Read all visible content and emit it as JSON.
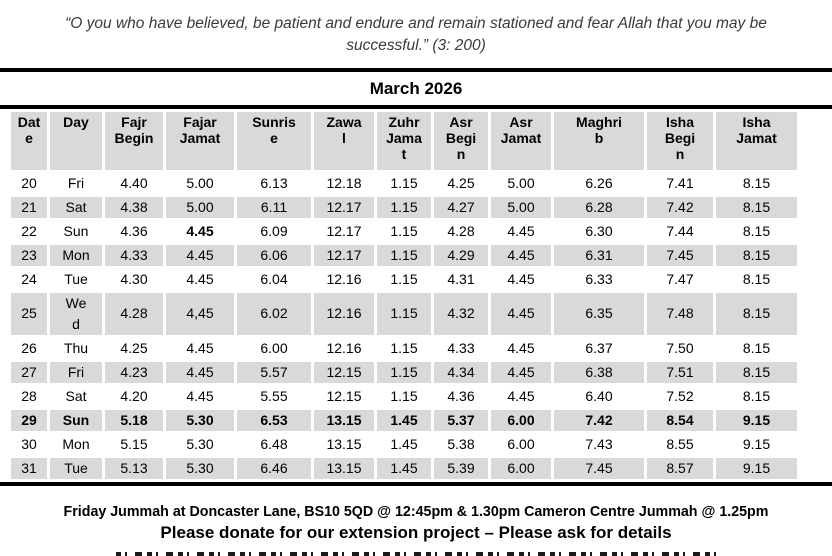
{
  "quote": {
    "text": "“O you who have believed, be patient and endure and remain stationed and fear Allah that you may be\nsuccessful.” (3: 200)"
  },
  "table": {
    "title": "March 2026",
    "columns": [
      "Dat\ne",
      "Day",
      "Fajr\nBegin",
      "Fajar\nJamat",
      "Sunris\ne",
      "Zawa\nl",
      "Zuhr\nJama\nt",
      "Asr\nBegi\nn",
      "Asr\nJamat",
      "Maghri\nb",
      "Isha\nBegi\nn",
      "Isha\nJamat"
    ],
    "rows": [
      {
        "date": "20",
        "day": "Fri",
        "times": [
          "4.40",
          "5.00",
          "6.13",
          "12.18",
          "1.15",
          "4.25",
          "5.00",
          "6.26",
          "7.41",
          "8.15"
        ],
        "shaded": false,
        "bold_row": false,
        "bold_times": [],
        "small_times": []
      },
      {
        "date": "21",
        "day": "Sat",
        "times": [
          "4.38",
          "5.00",
          "6.11",
          "12.17",
          "1.15",
          "4.27",
          "5.00",
          "6.28",
          "7.42",
          "8.15"
        ],
        "shaded": true,
        "bold_row": false,
        "bold_times": [],
        "small_times": [
          6
        ]
      },
      {
        "date": "22",
        "day": "Sun",
        "times": [
          "4.36",
          "4.45",
          "6.09",
          "12.17",
          "1.15",
          "4.28",
          "4.45",
          "6.30",
          "7.44",
          "8.15"
        ],
        "shaded": false,
        "bold_row": false,
        "bold_times": [
          1
        ],
        "small_times": []
      },
      {
        "date": "23",
        "day": "Mon",
        "times": [
          "4.33",
          "4.45",
          "6.06",
          "12.17",
          "1.15",
          "4.29",
          "4.45",
          "6.31",
          "7.45",
          "8.15"
        ],
        "shaded": true,
        "bold_row": false,
        "bold_times": [],
        "small_times": [
          6
        ]
      },
      {
        "date": "24",
        "day": "Tue",
        "times": [
          "4.30",
          "4.45",
          "6.04",
          "12.16",
          "1.15",
          "4.31",
          "4.45",
          "6.33",
          "7.47",
          "8.15"
        ],
        "shaded": false,
        "bold_row": false,
        "bold_times": [],
        "small_times": [
          6
        ]
      },
      {
        "date": "25",
        "day": "We\nd",
        "times": [
          "4.28",
          "4,45",
          "6.02",
          "12.16",
          "1.15",
          "4.32",
          "4.45",
          "6.35",
          "7.48",
          "8.15"
        ],
        "shaded": true,
        "bold_row": false,
        "bold_times": [],
        "small_times": [
          6
        ]
      },
      {
        "date": "26",
        "day": "Thu",
        "times": [
          "4.25",
          "4.45",
          "6.00",
          "12.16",
          "1.15",
          "4.33",
          "4.45",
          "6.37",
          "7.50",
          "8.15"
        ],
        "shaded": false,
        "bold_row": false,
        "bold_times": [],
        "small_times": [
          6
        ]
      },
      {
        "date": "27",
        "day": "Fri",
        "times": [
          "4.23",
          "4.45",
          "5.57",
          "12.15",
          "1.15",
          "4.34",
          "4.45",
          "6.38",
          "7.51",
          "8.15"
        ],
        "shaded": true,
        "bold_row": false,
        "bold_times": [],
        "small_times": [
          6
        ]
      },
      {
        "date": "28",
        "day": "Sat",
        "times": [
          "4.20",
          "4.45",
          "5.55",
          "12.15",
          "1.15",
          "4.36",
          "4.45",
          "6.40",
          "7.52",
          "8.15"
        ],
        "shaded": false,
        "bold_row": false,
        "bold_times": [],
        "small_times": [
          6
        ]
      },
      {
        "date": "29",
        "day": "Sun",
        "times": [
          "5.18",
          "5.30",
          "6.53",
          "13.15",
          "1.45",
          "5.37",
          "6.00",
          "7.42",
          "8.54",
          "9.15"
        ],
        "shaded": true,
        "bold_row": true,
        "bold_times": [],
        "small_times": []
      },
      {
        "date": "30",
        "day": "Mon",
        "times": [
          "5.15",
          "5.30",
          "6.48",
          "13.15",
          "1.45",
          "5.38",
          "6.00",
          "7.43",
          "8.55",
          "9.15"
        ],
        "shaded": false,
        "bold_row": false,
        "bold_times": [],
        "small_times": []
      },
      {
        "date": "31",
        "day": "Tue",
        "times": [
          "5.13",
          "5.30",
          "6.46",
          "13.15",
          "1.45",
          "5.39",
          "6.00",
          "7.45",
          "8.57",
          "9.15"
        ],
        "shaded": true,
        "bold_row": false,
        "bold_times": [],
        "small_times": []
      }
    ]
  },
  "footer": {
    "line1": "Friday Jummah at Doncaster Lane, BS10 5QD @ 12:45pm & 1.30pm Cameron Centre Jummah @ 1.25pm",
    "line2": "Please donate for our extension project – Please ask for details"
  },
  "colors": {
    "row_shade": "#d9d9d9",
    "rule": "#000000"
  }
}
